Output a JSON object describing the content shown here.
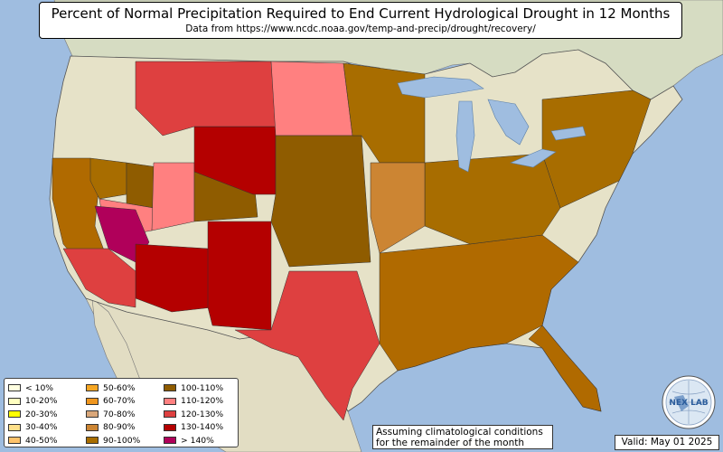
{
  "title": "Percent of Normal Precipitation Required to End Current Hydrological Drought in 12 Months",
  "subtitle": "Data from https://www.ncdc.noaa.gov/temp-and-precip/drought/recovery/",
  "note_line1": "Assuming climatological conditions",
  "note_line2": "for the remainder of the month",
  "valid": "Valid: May 01 2025",
  "logo_text": "NEX LAB",
  "colors": {
    "ocean": "#9fbde0",
    "land": "#e6e2c8",
    "canada": "#d6dcc2",
    "mexico": "#e2ddc3",
    "lake": "#9fbde0"
  },
  "legend": {
    "columns": [
      [
        {
          "label": "< 10%",
          "color": "#ffffe0"
        },
        {
          "label": "10-20%",
          "color": "#ffffc0"
        },
        {
          "label": "20-30%",
          "color": "#ffff00"
        },
        {
          "label": "30-40%",
          "color": "#ffe08a"
        },
        {
          "label": "40-50%",
          "color": "#ffc36b"
        }
      ],
      [
        {
          "label": "50-60%",
          "color": "#f5a623"
        },
        {
          "label": "60-70%",
          "color": "#f0961e"
        },
        {
          "label": "70-80%",
          "color": "#d9a77a"
        },
        {
          "label": "80-90%",
          "color": "#cc8533"
        },
        {
          "label": "90-100%",
          "color": "#a86d00"
        }
      ],
      [
        {
          "label": "100-110%",
          "color": "#8f5c00"
        },
        {
          "label": "110-120%",
          "color": "#ff8080"
        },
        {
          "label": "120-130%",
          "color": "#de4040"
        },
        {
          "label": "130-140%",
          "color": "#b40000"
        },
        {
          "label": "> 140%",
          "color": "#b0005a"
        }
      ]
    ]
  },
  "regions": [
    {
      "name": "ca-coast",
      "color": "#b06a00"
    },
    {
      "name": "oregon-south",
      "color": "#a86d00"
    },
    {
      "name": "nevada-north",
      "color": "#8f5c00"
    },
    {
      "name": "nevada-south",
      "color": "#ff8080"
    },
    {
      "name": "arizona-west",
      "color": "#b0005a"
    },
    {
      "name": "arizona-east",
      "color": "#b40000"
    },
    {
      "name": "socal",
      "color": "#de4040"
    },
    {
      "name": "utah",
      "color": "#ff8080"
    },
    {
      "name": "colorado-west",
      "color": "#8f5c00"
    },
    {
      "name": "wyoming",
      "color": "#b40000"
    },
    {
      "name": "montana",
      "color": "#de4040"
    },
    {
      "name": "dakotas",
      "color": "#ff8080"
    },
    {
      "name": "new-mexico",
      "color": "#b40000"
    },
    {
      "name": "texas",
      "color": "#de4040"
    },
    {
      "name": "plains",
      "color": "#8f5c00"
    },
    {
      "name": "southeast",
      "color": "#b06a00"
    },
    {
      "name": "ohio-valley",
      "color": "#a86d00"
    },
    {
      "name": "northeast",
      "color": "#a86d00"
    },
    {
      "name": "upper-midwest",
      "color": "#a86d00"
    },
    {
      "name": "missouri",
      "color": "#cc8533"
    },
    {
      "name": "florida",
      "color": "#b06a00"
    }
  ]
}
